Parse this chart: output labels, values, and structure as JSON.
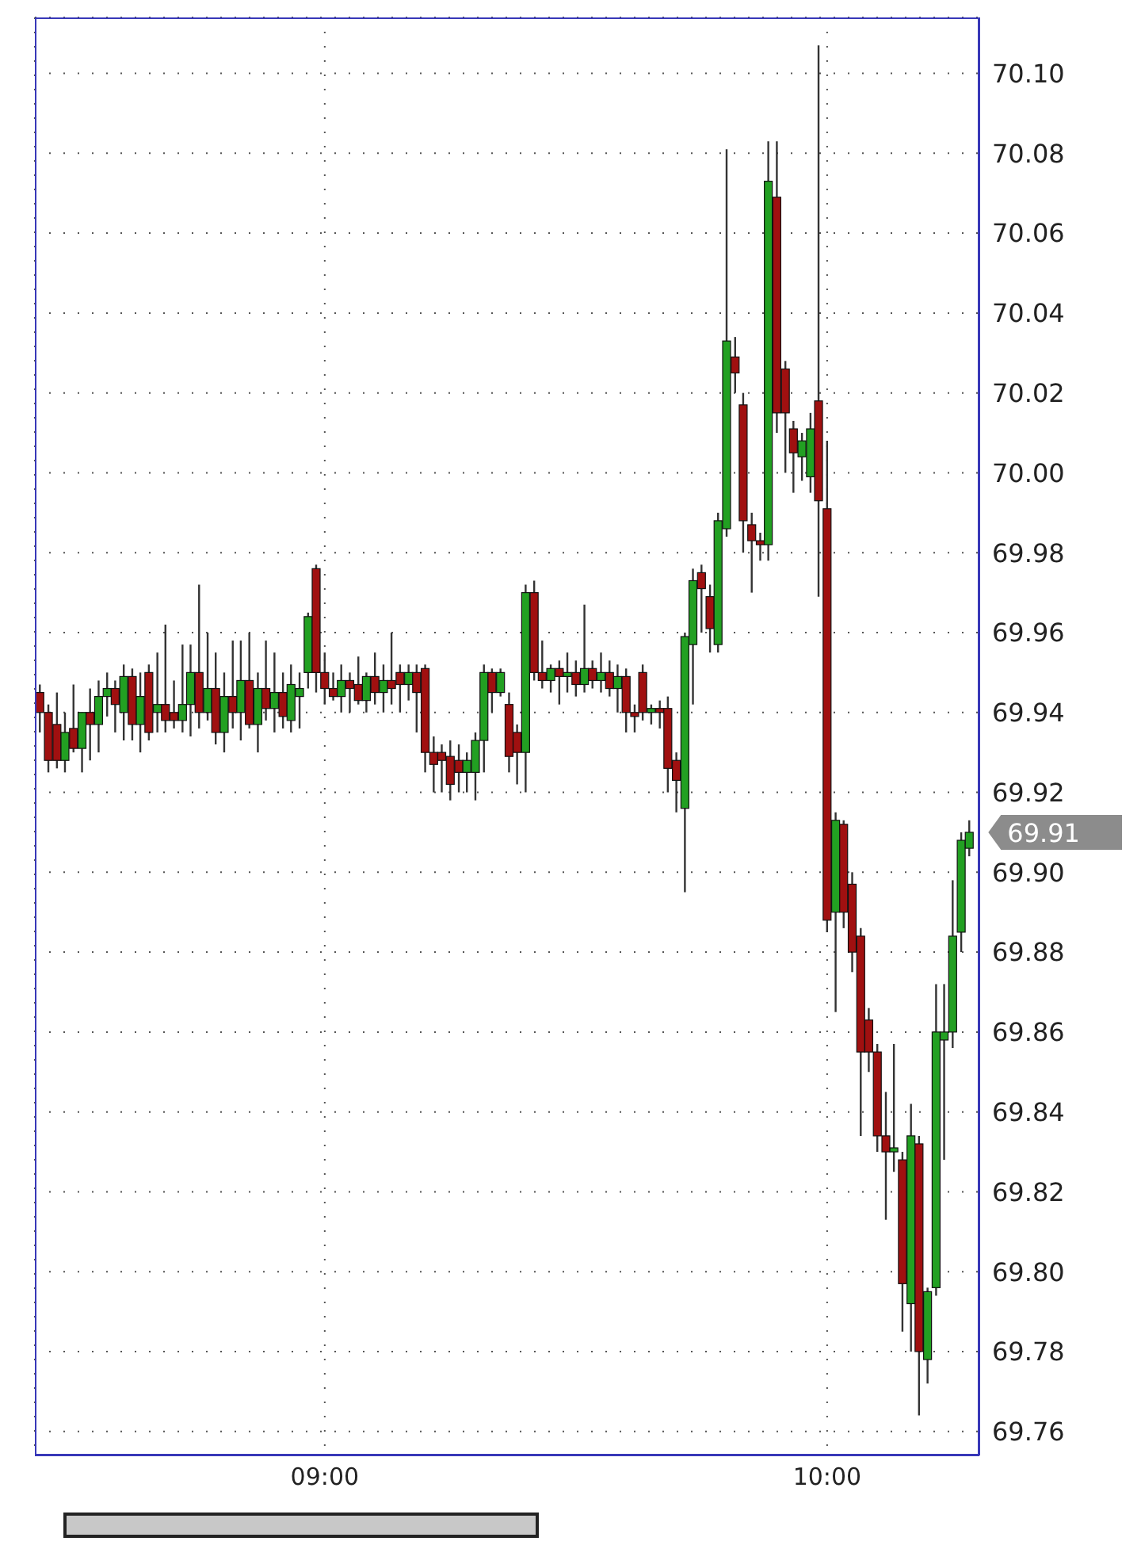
{
  "chart_data": {
    "type": "candlestick",
    "x": [
      8.433,
      8.45,
      8.467,
      8.483,
      8.5,
      8.517,
      8.533,
      8.55,
      8.567,
      8.583,
      8.6,
      8.617,
      8.633,
      8.65,
      8.667,
      8.683,
      8.7,
      8.717,
      8.733,
      8.75,
      8.767,
      8.783,
      8.8,
      8.817,
      8.833,
      8.85,
      8.867,
      8.883,
      8.9,
      8.917,
      8.933,
      8.95,
      8.967,
      8.983,
      9.0,
      9.017,
      9.033,
      9.05,
      9.067,
      9.083,
      9.1,
      9.117,
      9.133,
      9.15,
      9.167,
      9.183,
      9.2,
      9.217,
      9.233,
      9.25,
      9.267,
      9.283,
      9.3,
      9.317,
      9.333,
      9.35,
      9.367,
      9.383,
      9.4,
      9.417,
      9.433,
      9.45,
      9.467,
      9.483,
      9.5,
      9.517,
      9.533,
      9.55,
      9.567,
      9.583,
      9.6,
      9.617,
      9.633,
      9.65,
      9.667,
      9.683,
      9.7,
      9.717,
      9.733,
      9.75,
      9.767,
      9.783,
      9.8,
      9.817,
      9.833,
      9.85,
      9.867,
      9.883,
      9.9,
      9.917,
      9.933,
      9.95,
      9.967,
      9.983,
      10.0,
      10.017,
      10.033,
      10.05,
      10.067,
      10.083,
      10.1,
      10.117,
      10.133,
      10.15,
      10.167,
      10.183,
      10.2,
      10.217,
      10.233,
      10.25,
      10.267,
      10.283
    ],
    "ohlc": [
      [
        69.945,
        69.947,
        69.935,
        69.94
      ],
      [
        69.94,
        69.942,
        69.925,
        69.928
      ],
      [
        69.937,
        69.945,
        69.926,
        69.928
      ],
      [
        69.928,
        69.94,
        69.925,
        69.935
      ],
      [
        69.936,
        69.947,
        69.93,
        69.931
      ],
      [
        69.931,
        69.94,
        69.925,
        69.94
      ],
      [
        69.94,
        69.946,
        69.928,
        69.937
      ],
      [
        69.937,
        69.948,
        69.93,
        69.944
      ],
      [
        69.944,
        69.95,
        69.939,
        69.946
      ],
      [
        69.946,
        69.948,
        69.935,
        69.942
      ],
      [
        69.94,
        69.952,
        69.933,
        69.949
      ],
      [
        69.949,
        69.951,
        69.933,
        69.937
      ],
      [
        69.937,
        69.95,
        69.93,
        69.944
      ],
      [
        69.95,
        69.952,
        69.933,
        69.935
      ],
      [
        69.94,
        69.955,
        69.935,
        69.942
      ],
      [
        69.942,
        69.962,
        69.935,
        69.938
      ],
      [
        69.94,
        69.948,
        69.936,
        69.938
      ],
      [
        69.938,
        69.957,
        69.935,
        69.942
      ],
      [
        69.942,
        69.957,
        69.934,
        69.95
      ],
      [
        69.95,
        69.972,
        69.936,
        69.94
      ],
      [
        69.94,
        69.96,
        69.938,
        69.946
      ],
      [
        69.946,
        69.955,
        69.932,
        69.935
      ],
      [
        69.935,
        69.95,
        69.93,
        69.944
      ],
      [
        69.944,
        69.958,
        69.936,
        69.94
      ],
      [
        69.94,
        69.958,
        69.933,
        69.948
      ],
      [
        69.948,
        69.96,
        69.936,
        69.937
      ],
      [
        69.937,
        69.95,
        69.93,
        69.946
      ],
      [
        69.946,
        69.958,
        69.938,
        69.941
      ],
      [
        69.941,
        69.955,
        69.935,
        69.945
      ],
      [
        69.945,
        69.95,
        69.936,
        69.939
      ],
      [
        69.938,
        69.952,
        69.935,
        69.947
      ],
      [
        69.944,
        69.95,
        69.936,
        69.946
      ],
      [
        69.95,
        69.965,
        69.946,
        69.964
      ],
      [
        69.976,
        69.977,
        69.945,
        69.95
      ],
      [
        69.95,
        69.955,
        69.942,
        69.946
      ],
      [
        69.946,
        69.95,
        69.943,
        69.944
      ],
      [
        69.944,
        69.952,
        69.94,
        69.948
      ],
      [
        69.948,
        69.95,
        69.94,
        69.946
      ],
      [
        69.947,
        69.954,
        69.942,
        69.943
      ],
      [
        69.943,
        69.95,
        69.94,
        69.949
      ],
      [
        69.949,
        69.955,
        69.942,
        69.945
      ],
      [
        69.945,
        69.952,
        69.94,
        69.948
      ],
      [
        69.948,
        69.96,
        69.942,
        69.946
      ],
      [
        69.95,
        69.952,
        69.94,
        69.947
      ],
      [
        69.947,
        69.952,
        69.943,
        69.95
      ],
      [
        69.95,
        69.952,
        69.935,
        69.945
      ],
      [
        69.951,
        69.952,
        69.925,
        69.93
      ],
      [
        69.93,
        69.934,
        69.92,
        69.927
      ],
      [
        69.93,
        69.932,
        69.92,
        69.928
      ],
      [
        69.929,
        69.933,
        69.918,
        69.922
      ],
      [
        69.928,
        69.932,
        69.92,
        69.925
      ],
      [
        69.925,
        69.93,
        69.92,
        69.928
      ],
      [
        69.925,
        69.935,
        69.918,
        69.933
      ],
      [
        69.933,
        69.952,
        69.925,
        69.95
      ],
      [
        69.95,
        69.951,
        69.94,
        69.945
      ],
      [
        69.945,
        69.951,
        69.944,
        69.95
      ],
      [
        69.942,
        69.945,
        69.925,
        69.929
      ],
      [
        69.935,
        69.937,
        69.922,
        69.93
      ],
      [
        69.93,
        69.972,
        69.92,
        69.97
      ],
      [
        69.97,
        69.973,
        69.948,
        69.95
      ],
      [
        69.95,
        69.958,
        69.946,
        69.948
      ],
      [
        69.948,
        69.952,
        69.945,
        69.951
      ],
      [
        69.951,
        69.953,
        69.942,
        69.949
      ],
      [
        69.949,
        69.955,
        69.945,
        69.95
      ],
      [
        69.95,
        69.953,
        69.944,
        69.947
      ],
      [
        69.947,
        69.967,
        69.945,
        69.951
      ],
      [
        69.951,
        69.953,
        69.946,
        69.948
      ],
      [
        69.948,
        69.955,
        69.945,
        69.95
      ],
      [
        69.95,
        69.953,
        69.944,
        69.946
      ],
      [
        69.946,
        69.952,
        69.94,
        69.949
      ],
      [
        69.949,
        69.951,
        69.935,
        69.94
      ],
      [
        69.94,
        69.942,
        69.935,
        69.939
      ],
      [
        69.95,
        69.952,
        69.938,
        69.94
      ],
      [
        69.94,
        69.942,
        69.937,
        69.941
      ],
      [
        69.941,
        69.943,
        69.936,
        69.94
      ],
      [
        69.941,
        69.944,
        69.92,
        69.926
      ],
      [
        69.928,
        69.93,
        69.915,
        69.923
      ],
      [
        69.916,
        69.96,
        69.895,
        69.959
      ],
      [
        69.957,
        69.976,
        69.942,
        69.973
      ],
      [
        69.975,
        69.977,
        69.96,
        69.971
      ],
      [
        69.969,
        69.972,
        69.955,
        69.961
      ],
      [
        69.957,
        69.99,
        69.955,
        69.988
      ],
      [
        69.986,
        70.081,
        69.984,
        70.033
      ],
      [
        70.029,
        70.034,
        70.02,
        70.025
      ],
      [
        70.017,
        70.02,
        69.98,
        69.988
      ],
      [
        69.987,
        69.99,
        69.97,
        69.983
      ],
      [
        69.983,
        69.985,
        69.978,
        69.982
      ],
      [
        69.982,
        70.083,
        69.978,
        70.073
      ],
      [
        70.069,
        70.083,
        70.01,
        70.015
      ],
      [
        70.026,
        70.028,
        70.0,
        70.015
      ],
      [
        70.011,
        70.013,
        69.995,
        70.005
      ],
      [
        70.004,
        70.01,
        69.998,
        70.008
      ],
      [
        69.999,
        70.015,
        69.995,
        70.011
      ],
      [
        70.018,
        70.107,
        69.969,
        69.993
      ],
      [
        69.991,
        70.008,
        69.885,
        69.888
      ],
      [
        69.89,
        69.915,
        69.865,
        69.913
      ],
      [
        69.912,
        69.913,
        69.886,
        69.89
      ],
      [
        69.897,
        69.9,
        69.875,
        69.88
      ],
      [
        69.884,
        69.886,
        69.834,
        69.855
      ],
      [
        69.863,
        69.866,
        69.85,
        69.855
      ],
      [
        69.855,
        69.857,
        69.83,
        69.834
      ],
      [
        69.834,
        69.845,
        69.813,
        69.83
      ],
      [
        69.83,
        69.857,
        69.825,
        69.831
      ],
      [
        69.828,
        69.83,
        69.785,
        69.797
      ],
      [
        69.792,
        69.842,
        69.78,
        69.834
      ],
      [
        69.832,
        69.834,
        69.764,
        69.78
      ],
      [
        69.778,
        69.796,
        69.772,
        69.795
      ],
      [
        69.796,
        69.872,
        69.794,
        69.86
      ],
      [
        69.858,
        69.872,
        69.828,
        69.86
      ],
      [
        69.86,
        69.898,
        69.856,
        69.884
      ],
      [
        69.885,
        69.91,
        69.88,
        69.908
      ],
      [
        69.906,
        69.913,
        69.904,
        69.91
      ]
    ],
    "xlim": [
      8.423,
      10.303
    ],
    "xticks": [
      {
        "value": 9,
        "label": "09:00"
      },
      {
        "value": 10,
        "label": "10:00"
      }
    ],
    "ylim": [
      69.754,
      70.114
    ],
    "yticks": [
      69.76,
      69.78,
      {
        "value": 69.8,
        "label": "69.80"
      },
      69.82,
      69.84,
      69.86,
      69.88,
      {
        "value": 69.9,
        "label": "69.90"
      },
      69.92,
      69.94,
      69.96,
      69.98,
      {
        "value": 70.0,
        "label": "70.00"
      },
      70.02,
      70.04,
      70.06,
      70.08,
      {
        "value": 70.1,
        "label": "70.10"
      }
    ],
    "grid": true,
    "annotations": [
      {
        "text": "69.91",
        "x": 10.283,
        "y": 69.91
      }
    ]
  }
}
